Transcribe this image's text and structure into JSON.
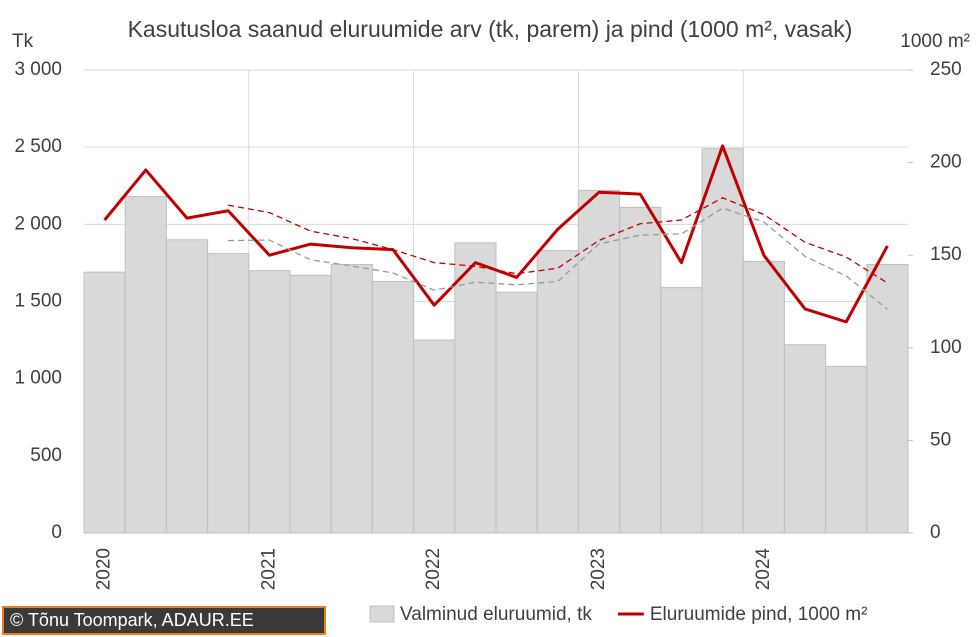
{
  "chart_data": {
    "type": "bar",
    "title": "Kasutusloa saanud eluruumide  arv (tk, parem) ja pind (1000 m², vasak)",
    "y_label": "Tk",
    "y2_label": "1000 m²",
    "credit": "© Tõnu Toompark, ADAUR.EE",
    "categories": [
      "2020",
      null,
      null,
      null,
      "2021",
      null,
      null,
      null,
      "2022",
      null,
      null,
      null,
      "2023",
      null,
      null,
      null,
      "2024",
      null,
      null,
      null
    ],
    "series": [
      {
        "name": "Valminud eluruumid, tk",
        "type": "bar",
        "color": "#d9d9d9",
        "values": [
          1690,
          2180,
          1900,
          1810,
          1700,
          1670,
          1740,
          1630,
          1250,
          1880,
          1560,
          1830,
          2220,
          2110,
          1590,
          2490,
          1760,
          1220,
          1080,
          1740
        ]
      },
      {
        "name": "Eluruumide pind, 1000 m²",
        "type": "line",
        "axis": "y2",
        "color": "#c00000",
        "values": [
          169,
          196,
          170,
          174,
          150,
          156,
          154,
          153,
          123,
          146,
          138,
          164,
          184,
          183,
          146,
          209,
          150,
          121,
          114,
          155
        ]
      },
      {
        "type": "dashed",
        "color": "#999999",
        "values": [
          null,
          null,
          null,
          1895,
          1898,
          1770,
          1730,
          1685,
          1573,
          1625,
          1608,
          1630,
          1873,
          1930,
          1938,
          2105,
          2015,
          1793,
          1665,
          1450
        ]
      },
      {
        "type": "dashed",
        "axis": "y2",
        "color": "#c00000",
        "values": [
          null,
          null,
          null,
          177,
          173,
          163,
          159,
          153,
          146,
          144,
          140,
          143,
          158,
          167,
          169,
          181,
          172,
          157,
          149,
          135
        ]
      }
    ],
    "ylim": [
      0,
      3000
    ],
    "yticks": [
      0,
      500,
      {
        "value": 1000,
        "label": "1 000"
      },
      {
        "value": 1500,
        "label": "1 500"
      },
      {
        "value": 2000,
        "label": "2 000"
      },
      {
        "value": 2500,
        "label": "2 500"
      },
      {
        "value": 3000,
        "label": "3 000"
      }
    ],
    "y2lim": [
      0,
      250
    ],
    "y2ticks": [
      0,
      50,
      100,
      150,
      200,
      250
    ],
    "grid": true
  }
}
